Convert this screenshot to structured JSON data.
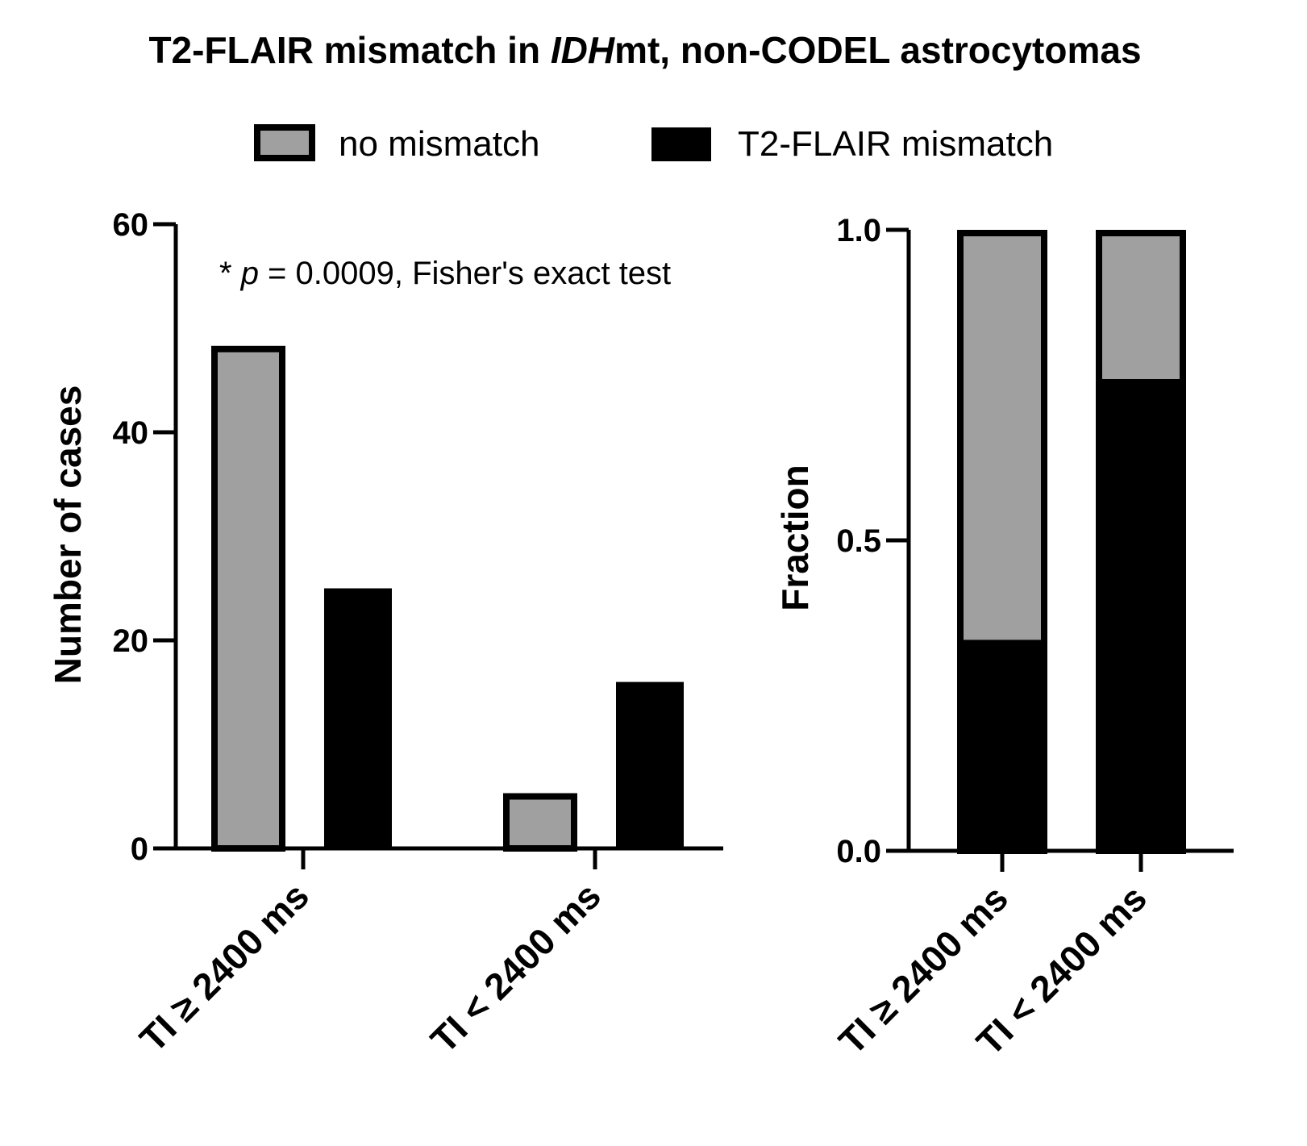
{
  "title": {
    "prefix": "T2-FLAIR mismatch in ",
    "italic": "IDH",
    "suffix": "mt, non-CODEL astrocytomas"
  },
  "legend": {
    "placement": "top-center",
    "items": [
      {
        "label": "no mismatch",
        "color": "#a0a0a0",
        "stroke": "#000000"
      },
      {
        "label": "T2-FLAIR mismatch",
        "color": "#000000",
        "stroke": "#000000"
      }
    ]
  },
  "annotation": {
    "star": "* ",
    "p_symbol": "p",
    "rest": " = 0.0009, Fisher's exact test"
  },
  "chart_data": [
    {
      "type": "bar",
      "categories": [
        "TI ≥ 2400 ms",
        "TI < 2400 ms"
      ],
      "series": [
        {
          "name": "no mismatch",
          "values": [
            48,
            5
          ]
        },
        {
          "name": "T2-FLAIR mismatch",
          "values": [
            25,
            16
          ]
        }
      ],
      "ylabel": "Number of cases",
      "ylim": [
        0,
        60
      ],
      "yticks": [
        "0",
        "20",
        "40",
        "60"
      ],
      "ytick_values": [
        0,
        20,
        40,
        60
      ],
      "grid": false
    },
    {
      "type": "bar",
      "stacked": true,
      "categories": [
        "TI ≥ 2400 ms",
        "TI < 2400 ms"
      ],
      "series": [
        {
          "name": "T2-FLAIR mismatch",
          "values": [
            0.34,
            0.76
          ]
        },
        {
          "name": "no mismatch",
          "values": [
            0.66,
            0.24
          ]
        }
      ],
      "ylabel": "Fraction",
      "ylim": [
        0,
        1.0
      ],
      "yticks": [
        "0.0",
        "0.5",
        "1.0"
      ],
      "ytick_values": [
        0,
        0.5,
        1.0
      ],
      "grid": false
    }
  ]
}
